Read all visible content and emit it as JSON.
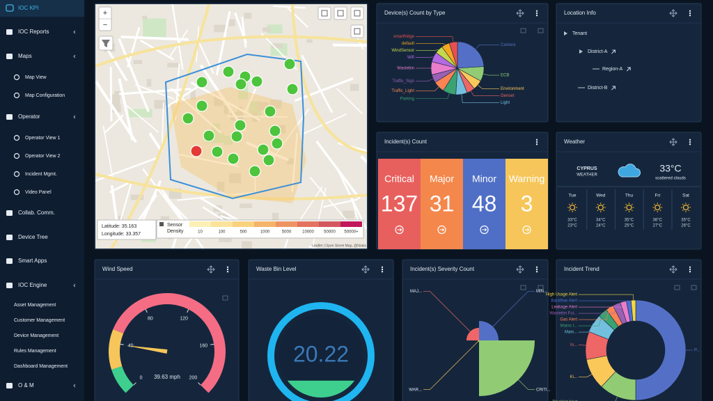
{
  "sidebar": {
    "brand": "IOC KPI",
    "items": [
      "IOC Reports",
      "Maps",
      "Map View",
      "Map Configuration",
      "Operator",
      "Operator View 1",
      "Operator View 2",
      "Incident Mgmt.",
      "Video Panel",
      "Collab. Comm.",
      "Device Tree",
      "Smart Apps",
      "IOC Engine",
      "Asset Management",
      "Customer Management",
      "Device Management",
      "Rules Management",
      "Dashboard Management",
      "O & M"
    ]
  },
  "map": {
    "zoom_in": "+",
    "zoom_out": "−",
    "latitude": "Latitude: 35.163",
    "longitude": "Longitude: 33.357",
    "legend_title_lines": [
      "Sensor",
      "Density"
    ],
    "density_labels": [
      "10",
      "100",
      "500",
      "1000",
      "5000",
      "10000",
      "50000",
      "50000+"
    ],
    "attribution": "Leaflet | Open Street Map, @Nokia"
  },
  "device_count": {
    "title": "Device(s) Count by Type",
    "type": "pie",
    "categories": [
      "Camera",
      "ECB",
      "Environment",
      "Genset",
      "Light",
      "Parking",
      "Traffic_Light",
      "Traffic_Sign",
      "Wastebin",
      "Wifi",
      "WindSensor",
      "default",
      "smartfridge"
    ],
    "values": [
      24,
      9,
      6,
      5,
      7,
      8,
      7,
      5,
      8,
      6,
      5,
      5,
      5
    ],
    "colors": [
      "#5470c6",
      "#91cc75",
      "#fac858",
      "#ee6666",
      "#73c0de",
      "#3ba272",
      "#fc8452",
      "#9a60b4",
      "#ea7ccc",
      "#b36ae2",
      "#c6d84b",
      "#f5a623",
      "#e85050"
    ]
  },
  "location_info": {
    "title": "Location Info",
    "tree": [
      "Tenant",
      "District-A",
      "Region-A",
      "District-B"
    ]
  },
  "incident_count": {
    "title": "Incident(s) Count",
    "categories": [
      "Critical",
      "Major",
      "Minor",
      "Warning"
    ],
    "values": [
      137,
      31,
      48,
      3
    ],
    "colors": [
      "#e8605e",
      "#f4874b",
      "#4f6fc6",
      "#f6c65a"
    ]
  },
  "weather": {
    "title": "Weather",
    "location": "CYPRUS",
    "location_sub": "WEATHER",
    "temperature": "33°C",
    "description": "scattered clouds",
    "days": [
      {
        "day": "Tue",
        "high": "33°C",
        "low": "23°C"
      },
      {
        "day": "Wed",
        "high": "34°C",
        "low": "24°C"
      },
      {
        "day": "Thu",
        "high": "35°C",
        "low": "25°C"
      },
      {
        "day": "Fri",
        "high": "36°C",
        "low": "27°C"
      },
      {
        "day": "Sat",
        "high": "35°C",
        "low": "26°C"
      }
    ]
  },
  "wind_speed": {
    "title": "Wind Speed",
    "type": "gauge",
    "range": [
      0,
      200
    ],
    "ticks": [
      0,
      40,
      80,
      120,
      160,
      200
    ],
    "bands": [
      {
        "from": 0,
        "to": 20,
        "color": "#3ecf8e"
      },
      {
        "from": 20,
        "to": 50,
        "color": "#f6c65a"
      },
      {
        "from": 50,
        "to": 200,
        "color": "#f46d85"
      }
    ],
    "value": 39.63,
    "value_label": "39.63 mph"
  },
  "waste_bin": {
    "title": "Waste Bin Level",
    "type": "liquid",
    "range": [
      0,
      100
    ],
    "value": 20.22
  },
  "severity_count": {
    "title": "Incident(s) Severity Count",
    "type": "rose",
    "categories": [
      "MIN...",
      "CRITI...",
      "WAR...",
      "MAJ..."
    ],
    "values": [
      48,
      137,
      3,
      31
    ],
    "colors": [
      "#5470c6",
      "#91cc75",
      "#fac858",
      "#ee6666"
    ]
  },
  "incident_trend": {
    "title": "Incident Trend",
    "type": "donut",
    "categories": [
      "P...",
      "Blacklist Alert",
      "Ki...",
      "In...",
      "Main...",
      "Mains I...",
      "Gas Alert",
      "Wastebin Ful...",
      "Leakage Alert",
      "Backflow Alert",
      "High Usage Alert"
    ],
    "values": [
      50,
      12,
      10,
      9,
      6,
      3,
      2.5,
      2.5,
      2,
      1.5,
      1.5
    ],
    "colors": [
      "#5470c6",
      "#91cc75",
      "#fac858",
      "#ee6666",
      "#73c0de",
      "#3ba272",
      "#fc8452",
      "#9a60b4",
      "#ea7ccc",
      "#4b6fd6",
      "#f5d742"
    ]
  }
}
